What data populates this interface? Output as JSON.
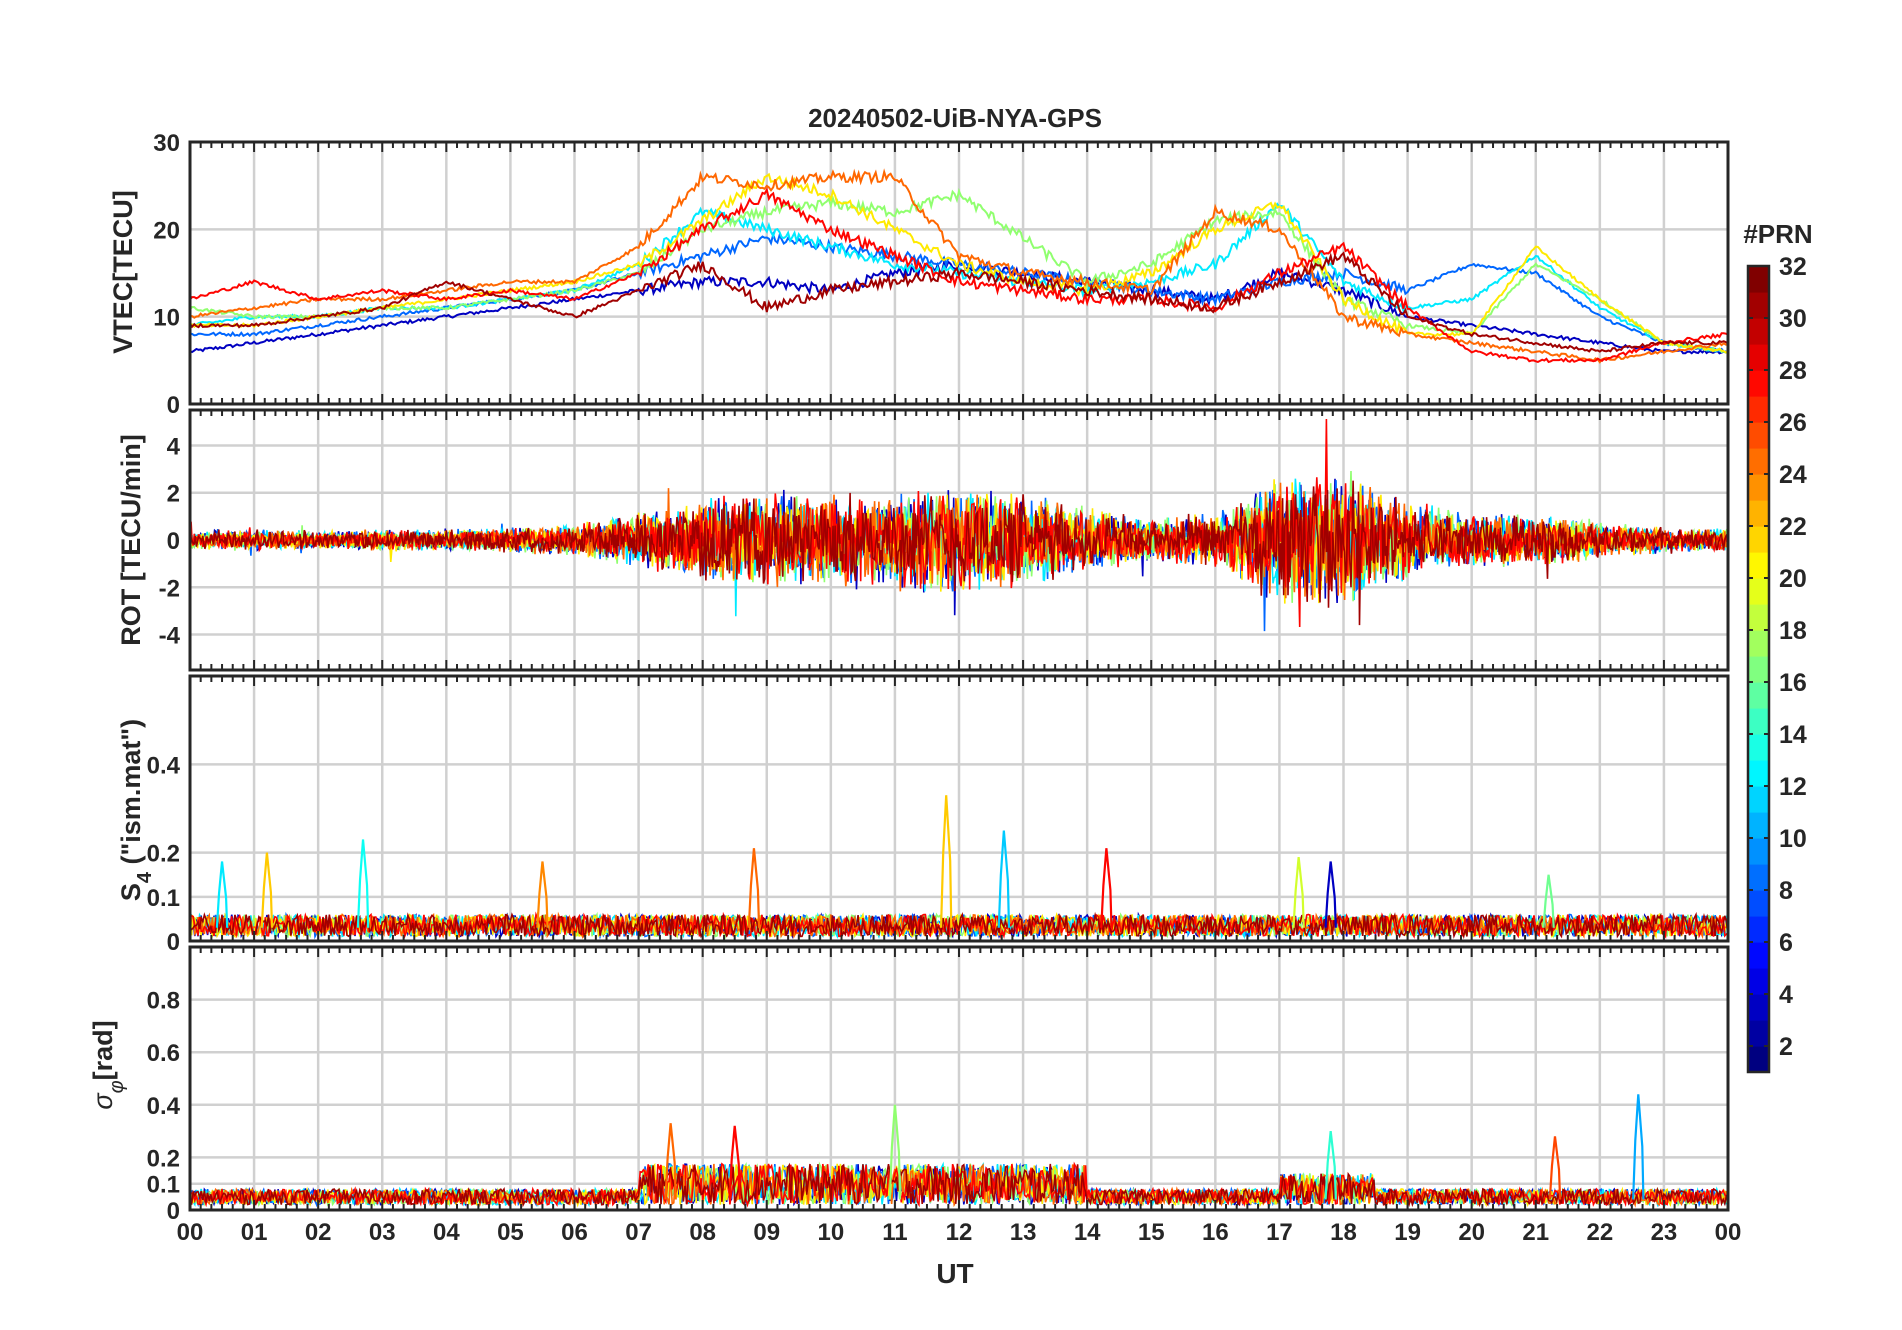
{
  "chart_data": {
    "type": "line",
    "title": "20240502-UiB-NYA-GPS",
    "xlabel": "UT",
    "x_ticks": [
      "00",
      "01",
      "02",
      "03",
      "04",
      "05",
      "06",
      "07",
      "08",
      "09",
      "10",
      "11",
      "12",
      "13",
      "14",
      "15",
      "16",
      "17",
      "18",
      "19",
      "20",
      "21",
      "22",
      "23",
      "00"
    ],
    "xlim_hours": [
      0,
      24
    ],
    "grid": true,
    "colorbar": {
      "label": "#PRN",
      "ticks": [
        "2",
        "4",
        "6",
        "8",
        "10",
        "12",
        "14",
        "16",
        "18",
        "20",
        "22",
        "24",
        "26",
        "28",
        "30",
        "32"
      ],
      "range": [
        1,
        32
      ],
      "colormap": "jet",
      "placement": "right"
    },
    "panels": [
      {
        "ylabel": "VTEC[TECU]",
        "ylim": [
          0,
          30
        ],
        "y_ticks": [
          "0",
          "10",
          "20",
          "30"
        ],
        "series": [
          {
            "prn": 3,
            "x": [
              0,
              1,
              2,
              3,
              4,
              5,
              6,
              7,
              8,
              9,
              10,
              11,
              12,
              13,
              14,
              15,
              16,
              17,
              18,
              19,
              20,
              21,
              22,
              23,
              24
            ],
            "y": [
              6,
              7,
              8,
              9,
              10,
              11,
              12,
              13,
              14,
              14,
              13,
              15,
              16,
              15,
              14,
              13,
              12,
              15,
              13,
              10,
              9,
              8,
              7,
              6,
              6
            ]
          },
          {
            "prn": 8,
            "x": [
              0,
              1,
              2,
              3,
              4,
              5,
              6,
              7,
              8,
              9,
              10,
              11,
              12,
              13,
              14,
              15,
              16,
              17,
              18,
              19,
              20,
              21,
              22,
              23,
              24
            ],
            "y": [
              8,
              8,
              9,
              10,
              11,
              12,
              13,
              15,
              17,
              19,
              18,
              17,
              16,
              15,
              14,
              13,
              12,
              14,
              15,
              13,
              16,
              15,
              10,
              7,
              6
            ]
          },
          {
            "prn": 12,
            "x": [
              0,
              1,
              2,
              3,
              4,
              5,
              6,
              7,
              8,
              9,
              10,
              11,
              12,
              13,
              14,
              15,
              16,
              17,
              18,
              19,
              20,
              21,
              22,
              23,
              24
            ],
            "y": [
              9,
              10,
              10,
              11,
              11,
              12,
              13,
              16,
              22,
              20,
              18,
              16,
              15,
              14,
              13,
              14,
              16,
              23,
              14,
              11,
              12,
              17,
              11,
              7,
              6
            ]
          },
          {
            "prn": 17,
            "x": [
              0,
              1,
              2,
              3,
              4,
              5,
              6,
              7,
              8,
              9,
              10,
              11,
              12,
              13,
              14,
              15,
              16,
              17,
              18,
              19,
              20,
              21,
              22,
              23,
              24
            ],
            "y": [
              11,
              10,
              10,
              11,
              11,
              12,
              13,
              15,
              20,
              22,
              23,
              22,
              24,
              19,
              14,
              16,
              21,
              22,
              12,
              9,
              8,
              16,
              12,
              7,
              6
            ]
          },
          {
            "prn": 21,
            "x": [
              0,
              1,
              2,
              3,
              4,
              5,
              6,
              7,
              8,
              9,
              10,
              11,
              12,
              13,
              14,
              15,
              16,
              17,
              18,
              19,
              20,
              21,
              22,
              23,
              24
            ],
            "y": [
              9,
              9,
              10,
              11,
              12,
              13,
              14,
              16,
              21,
              26,
              24,
              20,
              16,
              14,
              13,
              15,
              20,
              23,
              12,
              8,
              8,
              18,
              12,
              7,
              6
            ]
          },
          {
            "prn": 25,
            "x": [
              0,
              1,
              2,
              3,
              4,
              5,
              6,
              7,
              8,
              9,
              10,
              11,
              12,
              13,
              14,
              15,
              16,
              17,
              18,
              19,
              20,
              21,
              22,
              23,
              24
            ],
            "y": [
              10,
              11,
              12,
              12,
              13,
              14,
              14,
              18,
              26,
              25,
              26,
              26,
              17,
              15,
              14,
              13,
              22,
              20,
              10,
              8,
              7,
              6,
              5,
              6,
              7
            ]
          },
          {
            "prn": 28,
            "x": [
              0,
              1,
              2,
              3,
              4,
              5,
              6,
              7,
              8,
              9,
              10,
              11,
              12,
              13,
              14,
              15,
              16,
              17,
              18,
              19,
              20,
              21,
              22,
              23,
              24
            ],
            "y": [
              12,
              14,
              12,
              13,
              12,
              13,
              12,
              15,
              20,
              24,
              20,
              17,
              14,
              13,
              12,
              12,
              11,
              15,
              18,
              11,
              6,
              5,
              5,
              7,
              8
            ]
          },
          {
            "prn": 31,
            "x": [
              0,
              1,
              2,
              3,
              4,
              5,
              6,
              7,
              8,
              9,
              10,
              11,
              12,
              13,
              14,
              15,
              16,
              17,
              18,
              19,
              20,
              21,
              22,
              23,
              24
            ],
            "y": [
              9,
              9,
              10,
              11,
              14,
              12,
              10,
              13,
              16,
              11,
              13,
              14,
              15,
              14,
              13,
              12,
              11,
              14,
              17,
              10,
              8,
              7,
              6,
              7,
              7
            ]
          }
        ]
      },
      {
        "ylabel": "ROT [TECU/min]",
        "ylim": [
          -5.5,
          5.5
        ],
        "y_ticks": [
          "-4",
          "-2",
          "0",
          "2",
          "4"
        ],
        "series_amplitude_by_hour": [
          0.4,
          0.5,
          0.4,
          0.5,
          0.5,
          0.6,
          0.7,
          1.2,
          1.8,
          2.2,
          2.0,
          2.2,
          2.4,
          2.2,
          1.4,
          1.0,
          1.2,
          2.8,
          3.0,
          1.8,
          1.2,
          1.2,
          0.8,
          0.6,
          0.5
        ]
      },
      {
        "ylabel": "S4 (\"ism.mat\")",
        "ylim": [
          0,
          0.6
        ],
        "y_ticks": [
          "0",
          "0.1",
          "0.2",
          "0.4"
        ],
        "peaks": [
          {
            "x": 0.5,
            "y": 0.18,
            "prn": 12
          },
          {
            "x": 1.2,
            "y": 0.2,
            "prn": 22
          },
          {
            "x": 2.7,
            "y": 0.23,
            "prn": 13
          },
          {
            "x": 5.5,
            "y": 0.18,
            "prn": 24
          },
          {
            "x": 8.8,
            "y": 0.21,
            "prn": 25
          },
          {
            "x": 11.8,
            "y": 0.33,
            "prn": 22
          },
          {
            "x": 12.7,
            "y": 0.25,
            "prn": 11
          },
          {
            "x": 14.3,
            "y": 0.21,
            "prn": 28
          },
          {
            "x": 17.3,
            "y": 0.19,
            "prn": 19
          },
          {
            "x": 17.8,
            "y": 0.18,
            "prn": 3
          },
          {
            "x": 21.2,
            "y": 0.15,
            "prn": 16
          }
        ]
      },
      {
        "ylabel": "σφ[rad]",
        "ylim": [
          0,
          1
        ],
        "y_ticks": [
          "0",
          "0.1",
          "0.2",
          "0.4",
          "0.6",
          "0.8"
        ],
        "peaks": [
          {
            "x": 7.5,
            "y": 0.33,
            "prn": 25
          },
          {
            "x": 8.5,
            "y": 0.32,
            "prn": 28
          },
          {
            "x": 11.0,
            "y": 0.4,
            "prn": 17
          },
          {
            "x": 17.8,
            "y": 0.3,
            "prn": 14
          },
          {
            "x": 21.3,
            "y": 0.28,
            "prn": 26
          },
          {
            "x": 22.6,
            "y": 0.44,
            "prn": 10
          }
        ]
      }
    ]
  }
}
